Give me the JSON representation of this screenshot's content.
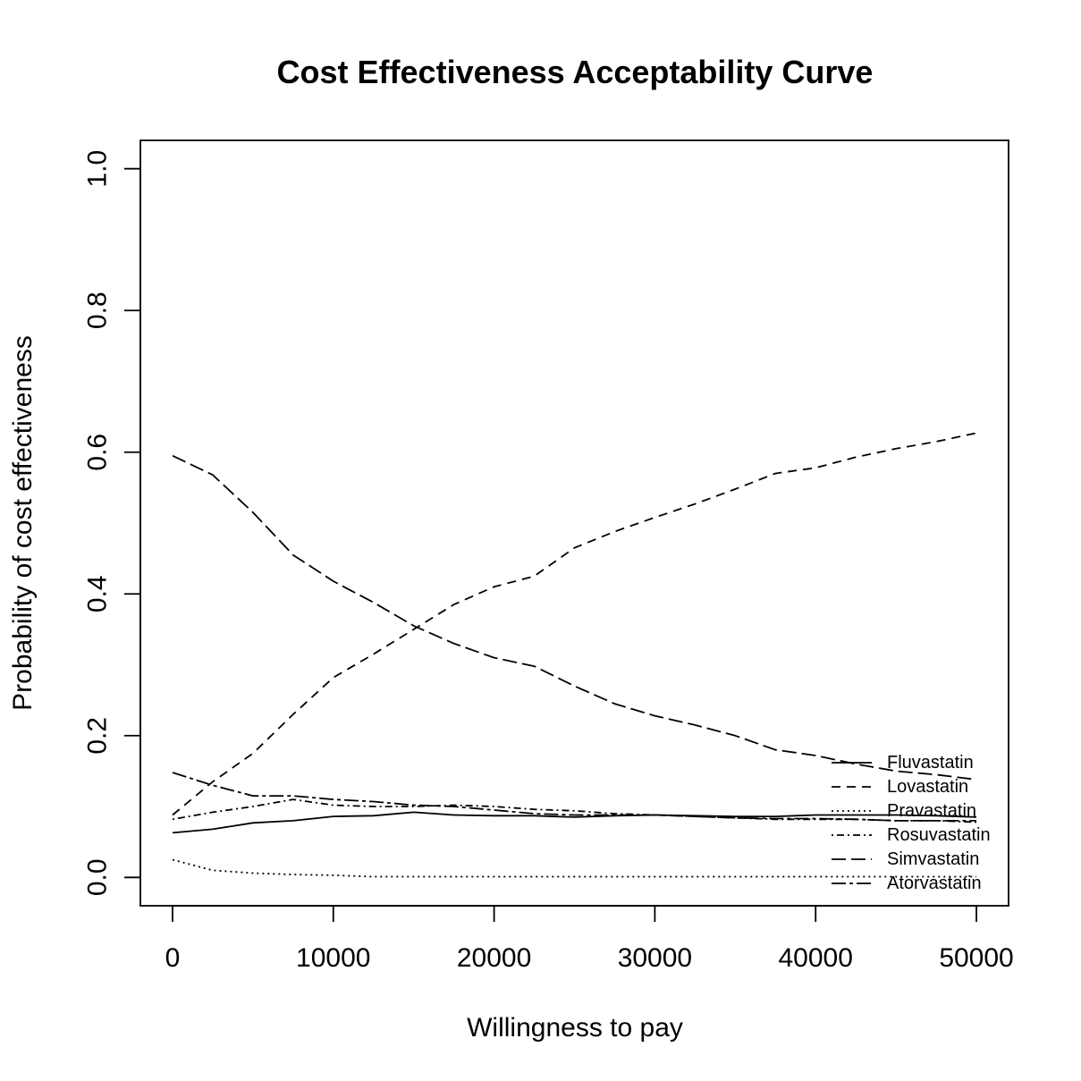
{
  "chart_data": {
    "type": "line",
    "title": "Cost Effectiveness Acceptability Curve",
    "xlabel": "Willingness to pay",
    "ylabel": "Probability of cost effectiveness",
    "xlim": [
      -2000,
      52000
    ],
    "ylim": [
      -0.04,
      1.04
    ],
    "x_ticks": [
      0,
      10000,
      20000,
      30000,
      40000,
      50000
    ],
    "x_tick_labels": [
      "0",
      "10000",
      "20000",
      "30000",
      "40000",
      "50000"
    ],
    "y_ticks": [
      0.0,
      0.2,
      0.4,
      0.6,
      0.8,
      1.0
    ],
    "y_tick_labels": [
      "0.0",
      "0.2",
      "0.4",
      "0.6",
      "0.8",
      "1.0"
    ],
    "grid": false,
    "legend_position": "bottom-right",
    "x": [
      0,
      2500,
      5000,
      7500,
      10000,
      12500,
      15000,
      17500,
      20000,
      22500,
      25000,
      27500,
      30000,
      32500,
      35000,
      37500,
      40000,
      42500,
      45000,
      47500,
      50000
    ],
    "series": [
      {
        "name": "Fluvastatin",
        "dash": "none",
        "values": [
          0.063,
          0.068,
          0.077,
          0.08,
          0.086,
          0.087,
          0.092,
          0.088,
          0.087,
          0.087,
          0.085,
          0.087,
          0.088,
          0.087,
          0.086,
          0.086,
          0.088,
          0.088,
          0.088,
          0.087,
          0.085
        ]
      },
      {
        "name": "Lovastatin",
        "dash": "10,7",
        "values": [
          0.088,
          0.135,
          0.175,
          0.23,
          0.282,
          0.315,
          0.35,
          0.385,
          0.41,
          0.425,
          0.465,
          0.488,
          0.508,
          0.527,
          0.548,
          0.57,
          0.578,
          0.593,
          0.605,
          0.615,
          0.627
        ]
      },
      {
        "name": "Pravastatin",
        "dash": "2,4",
        "values": [
          0.025,
          0.01,
          0.006,
          0.004,
          0.003,
          0.001,
          0.001,
          0.001,
          0.001,
          0.001,
          0.001,
          0.001,
          0.001,
          0.001,
          0.001,
          0.001,
          0.001,
          0.001,
          0.001,
          0.001,
          0.001
        ]
      },
      {
        "name": "Rosuvastatin",
        "dash": "2,4,8,4",
        "values": [
          0.082,
          0.092,
          0.1,
          0.11,
          0.102,
          0.1,
          0.1,
          0.102,
          0.1,
          0.096,
          0.094,
          0.09,
          0.088,
          0.086,
          0.084,
          0.082,
          0.082,
          0.082,
          0.08,
          0.08,
          0.078
        ]
      },
      {
        "name": "Simvastatin",
        "dash": "16,6",
        "values": [
          0.595,
          0.568,
          0.515,
          0.455,
          0.418,
          0.388,
          0.355,
          0.33,
          0.31,
          0.298,
          0.27,
          0.245,
          0.228,
          0.215,
          0.2,
          0.18,
          0.172,
          0.16,
          0.15,
          0.145,
          0.138
        ]
      },
      {
        "name": "Atorvastatin",
        "dash": "16,4,4,4",
        "values": [
          0.148,
          0.13,
          0.115,
          0.115,
          0.11,
          0.107,
          0.102,
          0.1,
          0.095,
          0.09,
          0.088,
          0.088,
          0.088,
          0.086,
          0.084,
          0.083,
          0.083,
          0.082,
          0.08,
          0.08,
          0.08
        ]
      }
    ]
  }
}
